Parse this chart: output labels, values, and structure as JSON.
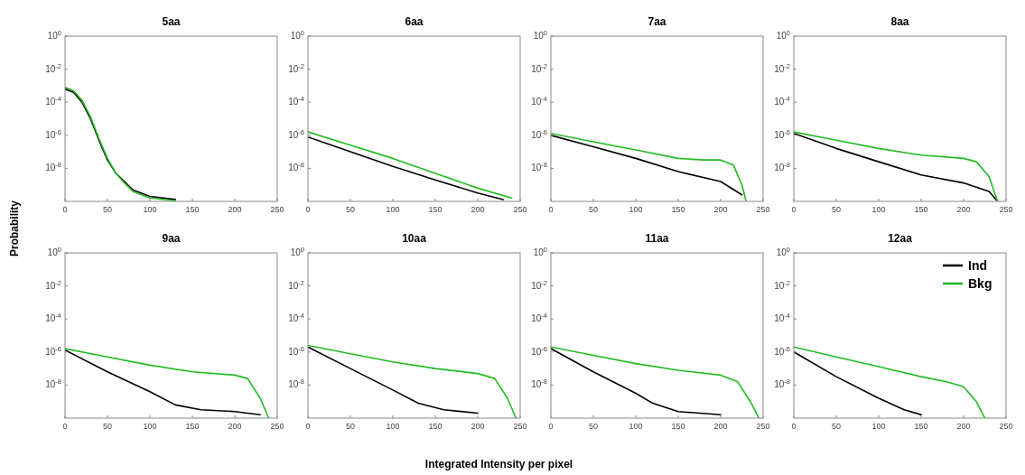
{
  "chart_data": [
    {
      "type": "line",
      "title": "5aa",
      "ylabel": "Probability",
      "log": "y",
      "xlim": [
        0,
        250
      ],
      "ylim": [
        1e-10,
        1
      ],
      "xticks": [
        0,
        50,
        100,
        150,
        200,
        250
      ],
      "yticks": [
        {
          "value": 1,
          "label": "10$^{0}$"
        },
        {
          "value": 0.01,
          "label": "10$^{-2}$"
        },
        {
          "value": 0.0001,
          "label": "10$^{-4}$"
        },
        {
          "value": 1e-06,
          "label": "10$^{-6}$"
        },
        {
          "value": 1e-08,
          "label": "10$^{-8}$"
        }
      ],
      "series": [
        {
          "color": "#000000",
          "x": [
            0,
            10,
            20,
            30,
            40,
            50,
            60,
            70,
            80,
            100,
            130
          ],
          "values": [
            0.00063,
            0.0004,
            0.0001,
            1e-05,
            5e-07,
            3.2e-08,
            5e-09,
            1.6e-09,
            5e-10,
            2e-10,
            1.3e-10
          ]
        },
        {
          "color": "#22bb22",
          "x": [
            0,
            10,
            20,
            30,
            40,
            50,
            60,
            70,
            80,
            100,
            130
          ],
          "values": [
            0.00079,
            0.0005,
            0.00013,
            1.3e-05,
            6.3e-07,
            4e-08,
            5e-09,
            1.3e-09,
            4e-10,
            1.6e-10,
            1.1e-10
          ]
        }
      ]
    },
    {
      "type": "line",
      "title": "6aa",
      "log": "y",
      "xlim": [
        0,
        250
      ],
      "ylim": [
        1e-10,
        1
      ],
      "xticks": [
        0,
        50,
        100,
        150,
        200,
        250
      ],
      "yticks": [
        {
          "value": 1,
          "label": "10$^{0}$"
        },
        {
          "value": 0.01,
          "label": "10$^{-2}$"
        },
        {
          "value": 0.0001,
          "label": "10$^{-4}$"
        },
        {
          "value": 1e-06,
          "label": "10$^{-6}$"
        },
        {
          "value": 1e-08,
          "label": "10$^{-8}$"
        }
      ],
      "series": [
        {
          "color": "#000000",
          "x": [
            0,
            50,
            100,
            150,
            200,
            230
          ],
          "values": [
            7.9e-07,
            1e-07,
            1.3e-08,
            2e-09,
            3.2e-10,
            1.3e-10
          ]
        },
        {
          "color": "#22bb22",
          "x": [
            0,
            50,
            100,
            150,
            200,
            240
          ],
          "values": [
            1.6e-06,
            2.5e-07,
            4e-08,
            5e-09,
            6.3e-10,
            1.6e-10
          ]
        }
      ]
    },
    {
      "type": "line",
      "title": "7aa",
      "log": "y",
      "xlim": [
        0,
        250
      ],
      "ylim": [
        1e-10,
        1
      ],
      "xticks": [
        0,
        50,
        100,
        150,
        200,
        250
      ],
      "yticks": [
        {
          "value": 1,
          "label": "10$^{0}$"
        },
        {
          "value": 0.01,
          "label": "10$^{-2}$"
        },
        {
          "value": 0.0001,
          "label": "10$^{-4}$"
        },
        {
          "value": 1e-06,
          "label": "10$^{-6}$"
        },
        {
          "value": 1e-08,
          "label": "10$^{-8}$"
        }
      ],
      "series": [
        {
          "color": "#000000",
          "x": [
            0,
            50,
            100,
            150,
            200,
            225
          ],
          "values": [
            1e-06,
            2e-07,
            4e-08,
            6.3e-09,
            1.6e-09,
            2.5e-10
          ]
        },
        {
          "color": "#22bb22",
          "x": [
            0,
            50,
            100,
            150,
            180,
            200,
            215,
            225,
            230
          ],
          "values": [
            1.3e-06,
            4e-07,
            1.3e-07,
            4e-08,
            3.2e-08,
            3.2e-08,
            1.6e-08,
            1e-09,
            1e-10
          ]
        }
      ]
    },
    {
      "type": "line",
      "title": "8aa",
      "log": "y",
      "xlim": [
        0,
        250
      ],
      "ylim": [
        1e-10,
        1
      ],
      "xticks": [
        0,
        50,
        100,
        150,
        200,
        250
      ],
      "yticks": [
        {
          "value": 1,
          "label": "10$^{0}$"
        },
        {
          "value": 0.01,
          "label": "10$^{-2}$"
        },
        {
          "value": 0.0001,
          "label": "10$^{-4}$"
        },
        {
          "value": 1e-06,
          "label": "10$^{-6}$"
        },
        {
          "value": 1e-08,
          "label": "10$^{-8}$"
        }
      ],
      "series": [
        {
          "color": "#000000",
          "x": [
            0,
            50,
            100,
            150,
            200,
            230,
            240
          ],
          "values": [
            1.3e-06,
            1.6e-07,
            2.5e-08,
            4e-09,
            1.3e-09,
            4e-10,
            1e-10
          ]
        },
        {
          "color": "#22bb22",
          "x": [
            0,
            50,
            100,
            150,
            200,
            215,
            230,
            240
          ],
          "values": [
            1.6e-06,
            5e-07,
            1.6e-07,
            6.3e-08,
            4e-08,
            2.5e-08,
            3.2e-09,
            1e-10
          ]
        }
      ]
    },
    {
      "type": "line",
      "title": "9aa",
      "log": "y",
      "xlim": [
        0,
        250
      ],
      "ylim": [
        1e-10,
        1
      ],
      "xticks": [
        0,
        50,
        100,
        150,
        200,
        250
      ],
      "yticks": [
        {
          "value": 1,
          "label": "10$^{0}$"
        },
        {
          "value": 0.01,
          "label": "10$^{-2}$"
        },
        {
          "value": 0.0001,
          "label": "10$^{-4}$"
        },
        {
          "value": 1e-06,
          "label": "10$^{-6}$"
        },
        {
          "value": 1e-08,
          "label": "10$^{-8}$"
        }
      ],
      "series": [
        {
          "color": "#000000",
          "x": [
            0,
            50,
            100,
            130,
            160,
            200,
            230
          ],
          "values": [
            1.3e-06,
            6.3e-08,
            4e-09,
            6.3e-10,
            3.2e-10,
            2.5e-10,
            1.6e-10
          ]
        },
        {
          "color": "#22bb22",
          "x": [
            0,
            50,
            100,
            150,
            200,
            215,
            230,
            240
          ],
          "values": [
            1.6e-06,
            5e-07,
            1.6e-07,
            6.3e-08,
            4e-08,
            2.5e-08,
            1.6e-09,
            1e-10
          ]
        }
      ]
    },
    {
      "type": "line",
      "title": "10aa",
      "xlabel": "Integrated Intensity per pixel",
      "log": "y",
      "xlim": [
        0,
        250
      ],
      "ylim": [
        1e-10,
        1
      ],
      "xticks": [
        0,
        50,
        100,
        150,
        200,
        250
      ],
      "yticks": [
        {
          "value": 1,
          "label": "10$^{0}$"
        },
        {
          "value": 0.01,
          "label": "10$^{-2}$"
        },
        {
          "value": 0.0001,
          "label": "10$^{-4}$"
        },
        {
          "value": 1e-06,
          "label": "10$^{-6}$"
        },
        {
          "value": 1e-08,
          "label": "10$^{-8}$"
        }
      ],
      "series": [
        {
          "color": "#000000",
          "x": [
            0,
            50,
            100,
            130,
            160,
            200
          ],
          "values": [
            2e-06,
            1e-07,
            5e-09,
            7.9e-10,
            3.2e-10,
            2e-10
          ]
        },
        {
          "color": "#22bb22",
          "x": [
            0,
            50,
            100,
            150,
            200,
            220,
            235,
            245
          ],
          "values": [
            2.5e-06,
            7.9e-07,
            2.5e-07,
            1e-07,
            5e-08,
            2.5e-08,
            1.6e-09,
            1e-10
          ]
        }
      ]
    },
    {
      "type": "line",
      "title": "11aa",
      "log": "y",
      "xlim": [
        0,
        250
      ],
      "ylim": [
        1e-10,
        1
      ],
      "xticks": [
        0,
        50,
        100,
        150,
        200,
        250
      ],
      "yticks": [
        {
          "value": 1,
          "label": "10$^{0}$"
        },
        {
          "value": 0.01,
          "label": "10$^{-2}$"
        },
        {
          "value": 0.0001,
          "label": "10$^{-4}$"
        },
        {
          "value": 1e-06,
          "label": "10$^{-6}$"
        },
        {
          "value": 1e-08,
          "label": "10$^{-8}$"
        }
      ],
      "series": [
        {
          "color": "#000000",
          "x": [
            0,
            50,
            100,
            120,
            150,
            200
          ],
          "values": [
            1.6e-06,
            6.3e-08,
            3.2e-09,
            7.9e-10,
            2.5e-10,
            1.6e-10
          ]
        },
        {
          "color": "#22bb22",
          "x": [
            0,
            50,
            100,
            150,
            200,
            220,
            235,
            245
          ],
          "values": [
            2e-06,
            6.3e-07,
            2e-07,
            7.9e-08,
            4e-08,
            1.6e-08,
            1e-09,
            1e-10
          ]
        }
      ]
    },
    {
      "type": "line",
      "title": "12aa",
      "log": "y",
      "legend": "top right",
      "xlim": [
        0,
        250
      ],
      "ylim": [
        1e-10,
        1
      ],
      "xticks": [
        0,
        50,
        100,
        150,
        200,
        250
      ],
      "yticks": [
        {
          "value": 1,
          "label": "10$^{0}$"
        },
        {
          "value": 0.01,
          "label": "10$^{-2}$"
        },
        {
          "value": 0.0001,
          "label": "10$^{-4}$"
        },
        {
          "value": 1e-06,
          "label": "10$^{-6}$"
        },
        {
          "value": 1e-08,
          "label": "10$^{-8}$"
        }
      ],
      "series": [
        {
          "name": "Ind",
          "color": "#000000",
          "x": [
            0,
            50,
            100,
            130,
            150
          ],
          "values": [
            1e-06,
            3.2e-08,
            1.6e-09,
            3.2e-10,
            1.6e-10
          ]
        },
        {
          "name": "Bkg",
          "color": "#22bb22",
          "x": [
            0,
            50,
            100,
            150,
            180,
            200,
            215,
            225
          ],
          "values": [
            2e-06,
            5e-07,
            1.3e-07,
            3.2e-08,
            1.6e-08,
            7.9e-09,
            1e-09,
            1e-10
          ]
        }
      ]
    }
  ]
}
